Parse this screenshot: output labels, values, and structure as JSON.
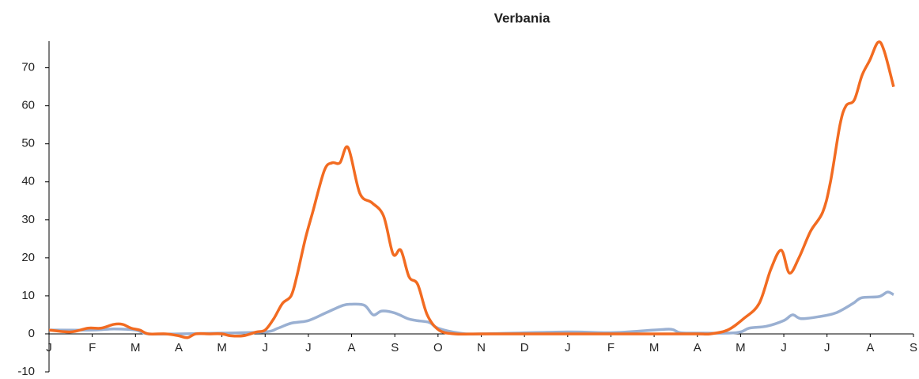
{
  "chart_data": {
    "type": "line",
    "title": "Verbania",
    "xlim": [
      0,
      20
    ],
    "xticks": [
      {
        "value": 0,
        "label": "J"
      },
      {
        "value": 1,
        "label": "F"
      },
      {
        "value": 2,
        "label": "M"
      },
      {
        "value": 3,
        "label": "A"
      },
      {
        "value": 4,
        "label": "M"
      },
      {
        "value": 5,
        "label": "J"
      },
      {
        "value": 6,
        "label": "J"
      },
      {
        "value": 7,
        "label": "A"
      },
      {
        "value": 8,
        "label": "S"
      },
      {
        "value": 9,
        "label": "O"
      },
      {
        "value": 10,
        "label": "N"
      },
      {
        "value": 11,
        "label": "D"
      },
      {
        "value": 12,
        "label": "J"
      },
      {
        "value": 13,
        "label": "F"
      },
      {
        "value": 14,
        "label": "M"
      },
      {
        "value": 15,
        "label": "A"
      },
      {
        "value": 16,
        "label": "M"
      },
      {
        "value": 17,
        "label": "J"
      },
      {
        "value": 18,
        "label": "J"
      },
      {
        "value": 19,
        "label": "A"
      },
      {
        "value": 20,
        "label": "S"
      }
    ],
    "ylim": [
      -10,
      77
    ],
    "yticks": [
      -10,
      0,
      10,
      20,
      30,
      40,
      50,
      60,
      70
    ],
    "series": [
      {
        "color": "#f26b21",
        "x": [
          0,
          0.5,
          0.9,
          1.2,
          1.5,
          1.7,
          1.9,
          2.1,
          2.3,
          2.7,
          3,
          3.2,
          3.4,
          3.7,
          4,
          4.2,
          4.5,
          4.8,
          5,
          5.2,
          5.4,
          5.6,
          5.73,
          5.93,
          6.1,
          6.37,
          6.55,
          6.73,
          6.92,
          7.19,
          7.47,
          7.74,
          7.96,
          8.14,
          8.33,
          8.53,
          8.75,
          9.02,
          9.39,
          10,
          11,
          12,
          13,
          14,
          15,
          15.3,
          15.7,
          16.07,
          16.43,
          16.7,
          16.94,
          17.13,
          17.35,
          17.62,
          17.9,
          18.08,
          18.3,
          18.44,
          18.63,
          18.81,
          18.99,
          19.18,
          19.32,
          19.54
        ],
        "values": [
          1,
          0.5,
          1.5,
          1.5,
          2.5,
          2.5,
          1.5,
          1,
          0,
          0,
          -0.5,
          -1,
          0,
          0,
          0,
          -0.5,
          -0.5,
          0.5,
          1,
          4,
          8,
          10,
          15,
          25,
          32,
          43,
          45,
          45,
          49,
          37,
          34.5,
          31,
          21,
          22,
          15,
          13,
          5,
          1,
          0,
          0,
          0,
          0,
          0,
          0,
          0,
          0,
          1,
          4,
          8,
          17,
          22,
          16,
          20,
          27,
          32,
          40,
          55,
          60,
          61.5,
          68,
          72,
          76.7,
          74.5,
          65
        ]
      },
      {
        "color": "#9ab0d2",
        "x": [
          0,
          1,
          1.5,
          2,
          2.3,
          3,
          4,
          5,
          5.3,
          5.6,
          6,
          6.4,
          6.8,
          7,
          7.3,
          7.5,
          7.7,
          8,
          8.3,
          8.5,
          8.8,
          9,
          9.5,
          10,
          12,
          13,
          14,
          14.4,
          14.6,
          15,
          15.9,
          16.2,
          16.6,
          17,
          17.2,
          17.4,
          17.8,
          18.2,
          18.6,
          18.8,
          19.2,
          19.4,
          19.54
        ],
        "values": [
          1,
          1,
          1.3,
          1,
          0,
          0,
          0.2,
          0.5,
          1.5,
          2.8,
          3.5,
          5.5,
          7.5,
          7.8,
          7.5,
          5,
          6,
          5.5,
          4,
          3.5,
          3,
          1.5,
          0.2,
          0,
          0.5,
          0.3,
          1,
          1.2,
          0.3,
          0.2,
          0.3,
          1.5,
          2,
          3.5,
          5,
          4,
          4.5,
          5.5,
          8,
          9.5,
          9.8,
          11,
          10.3
        ]
      }
    ]
  }
}
